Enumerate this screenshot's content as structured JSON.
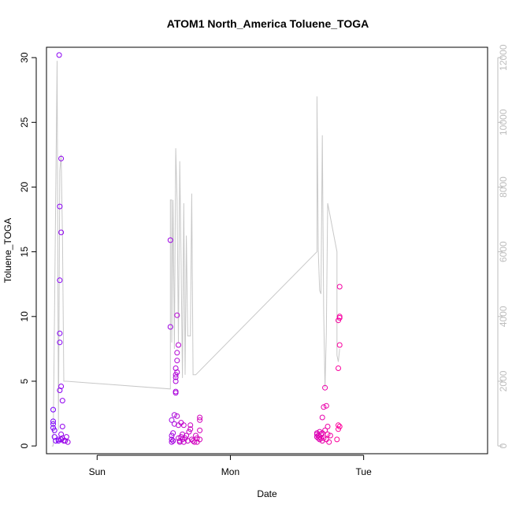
{
  "chart_data": {
    "type": "scatter",
    "title": "ATOM1 North_America Toluene_TOGA",
    "xlabel": "Date",
    "ylabel": "Toluene_TOGA",
    "x_ticks": [
      "Sun",
      "Mon",
      "Tue"
    ],
    "x_tick_positions": [
      0,
      1,
      2
    ],
    "xlim": [
      -0.38,
      2.93
    ],
    "ylim": [
      -0.6,
      30.8
    ],
    "y_ticks": [
      0,
      5,
      10,
      15,
      20,
      25,
      30
    ],
    "y2lim": [
      -240,
      12320
    ],
    "y2_ticks": [
      0,
      2000,
      4000,
      6000,
      8000,
      10000,
      12000
    ],
    "line_color": "#c8c8c8",
    "point_color_start": "#7b00ff",
    "point_color_end": "#ff0099",
    "points": [
      [
        -0.33,
        2.8
      ],
      [
        -0.33,
        1.9
      ],
      [
        -0.33,
        1.7
      ],
      [
        -0.33,
        1.4
      ],
      [
        -0.32,
        1.2
      ],
      [
        -0.32,
        0.7
      ],
      [
        -0.31,
        0.4
      ],
      [
        -0.29,
        0.5
      ],
      [
        -0.29,
        0.4
      ],
      [
        -0.28,
        8.7
      ],
      [
        -0.28,
        8.0
      ],
      [
        -0.28,
        12.8
      ],
      [
        -0.28,
        18.5
      ],
      [
        -0.285,
        30.2
      ],
      [
        -0.28,
        4.3
      ],
      [
        -0.27,
        16.5
      ],
      [
        -0.27,
        22.2
      ],
      [
        -0.27,
        4.6
      ],
      [
        -0.26,
        3.5
      ],
      [
        -0.26,
        1.5
      ],
      [
        -0.27,
        0.9
      ],
      [
        -0.27,
        0.5
      ],
      [
        -0.26,
        0.6
      ],
      [
        -0.25,
        0.4
      ],
      [
        -0.24,
        0.4
      ],
      [
        -0.23,
        0.7
      ],
      [
        -0.22,
        0.3
      ],
      [
        0.55,
        15.9
      ],
      [
        0.55,
        9.2
      ],
      [
        0.56,
        2.0
      ],
      [
        0.56,
        0.8
      ],
      [
        0.56,
        0.5
      ],
      [
        0.56,
        0.3
      ],
      [
        0.57,
        1.0
      ],
      [
        0.57,
        0.4
      ],
      [
        0.58,
        2.4
      ],
      [
        0.58,
        1.7
      ],
      [
        0.59,
        4.1
      ],
      [
        0.59,
        4.2
      ],
      [
        0.59,
        5.0
      ],
      [
        0.59,
        5.3
      ],
      [
        0.59,
        5.5
      ],
      [
        0.59,
        6.0
      ],
      [
        0.6,
        5.7
      ],
      [
        0.6,
        6.6
      ],
      [
        0.6,
        7.2
      ],
      [
        0.6,
        10.1
      ],
      [
        0.6,
        2.3
      ],
      [
        0.61,
        7.8
      ],
      [
        0.61,
        1.6
      ],
      [
        0.61,
        0.6
      ],
      [
        0.62,
        0.4
      ],
      [
        0.62,
        0.3
      ],
      [
        0.63,
        0.7
      ],
      [
        0.63,
        1.8
      ],
      [
        0.64,
        0.9
      ],
      [
        0.64,
        0.5
      ],
      [
        0.65,
        1.6
      ],
      [
        0.65,
        0.3
      ],
      [
        0.66,
        0.6
      ],
      [
        0.67,
        0.8
      ],
      [
        0.68,
        0.4
      ],
      [
        0.69,
        1.1
      ],
      [
        0.7,
        1.3
      ],
      [
        0.7,
        1.6
      ],
      [
        0.71,
        0.5
      ],
      [
        0.72,
        0.4
      ],
      [
        0.73,
        0.3
      ],
      [
        0.74,
        0.8
      ],
      [
        0.75,
        0.6
      ],
      [
        0.77,
        2.2
      ],
      [
        0.77,
        2.0
      ],
      [
        0.77,
        1.2
      ],
      [
        0.77,
        0.5
      ],
      [
        0.75,
        0.3
      ],
      [
        1.65,
        0.9
      ],
      [
        1.65,
        0.7
      ],
      [
        1.65,
        1.0
      ],
      [
        1.66,
        0.6
      ],
      [
        1.66,
        0.8
      ],
      [
        1.67,
        1.1
      ],
      [
        1.67,
        0.7
      ],
      [
        1.67,
        0.5
      ],
      [
        1.68,
        0.9
      ],
      [
        1.68,
        0.6
      ],
      [
        1.69,
        1.0
      ],
      [
        1.69,
        0.4
      ],
      [
        1.69,
        2.2
      ],
      [
        1.7,
        3.0
      ],
      [
        1.7,
        0.6
      ],
      [
        1.71,
        4.5
      ],
      [
        1.71,
        1.2
      ],
      [
        1.72,
        3.1
      ],
      [
        1.72,
        0.5
      ],
      [
        1.73,
        1.5
      ],
      [
        1.73,
        0.9
      ],
      [
        1.74,
        0.3
      ],
      [
        1.75,
        0.8
      ],
      [
        1.82,
        12.3
      ],
      [
        1.82,
        9.9
      ],
      [
        1.82,
        10.0
      ],
      [
        1.81,
        9.7
      ],
      [
        1.82,
        7.8
      ],
      [
        1.81,
        6.0
      ],
      [
        1.81,
        1.6
      ],
      [
        1.81,
        1.3
      ],
      [
        1.8,
        0.5
      ],
      [
        1.82,
        1.5
      ]
    ],
    "line": [
      [
        -0.34,
        0
      ],
      [
        -0.33,
        0
      ],
      [
        -0.3,
        11900
      ],
      [
        -0.29,
        500
      ],
      [
        -0.28,
        8500
      ],
      [
        -0.27,
        9000
      ],
      [
        -0.26,
        6500
      ],
      [
        -0.25,
        2000
      ],
      [
        -0.23,
        2000
      ],
      [
        0.55,
        1760
      ],
      [
        0.55,
        7600
      ],
      [
        0.56,
        7600
      ],
      [
        0.56,
        3200
      ],
      [
        0.57,
        7600
      ],
      [
        0.58,
        3000
      ],
      [
        0.59,
        9200
      ],
      [
        0.6,
        7600
      ],
      [
        0.61,
        3200
      ],
      [
        0.62,
        8800
      ],
      [
        0.63,
        5700
      ],
      [
        0.64,
        2100
      ],
      [
        0.65,
        7500
      ],
      [
        0.66,
        2200
      ],
      [
        0.67,
        6500
      ],
      [
        0.68,
        3400
      ],
      [
        0.7,
        3400
      ],
      [
        0.71,
        7800
      ],
      [
        0.72,
        2200
      ],
      [
        0.74,
        2200
      ],
      [
        1.65,
        6000
      ],
      [
        1.65,
        10800
      ],
      [
        1.66,
        6000
      ],
      [
        1.67,
        4800
      ],
      [
        1.68,
        4700
      ],
      [
        1.69,
        9600
      ],
      [
        1.7,
        4200
      ],
      [
        1.71,
        1800
      ],
      [
        1.72,
        3500
      ],
      [
        1.73,
        7500
      ],
      [
        1.8,
        6000
      ],
      [
        1.8,
        2800
      ],
      [
        1.81,
        2600
      ],
      [
        1.82,
        3000
      ]
    ]
  }
}
